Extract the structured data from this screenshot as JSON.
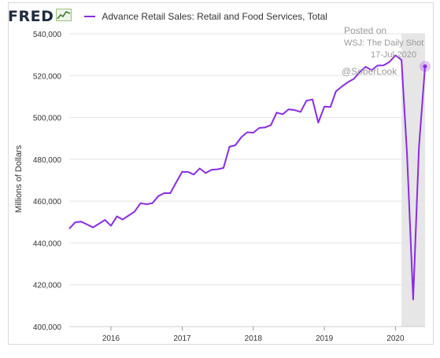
{
  "header": {
    "logo_text": "FRED",
    "logo_icon": "line-chart-icon",
    "legend_label": "Advance Retail Sales: Retail and Food Services, Total",
    "legend_color": "#8a2be2"
  },
  "watermark": {
    "line1": "Posted on",
    "line2": "WSJ: The Daily Shot",
    "line3": "17-Jul-2020",
    "line4": "@SoberLook"
  },
  "chart_data": {
    "type": "line",
    "ylabel": "Millions of Dollars",
    "ylim": [
      400000,
      540000
    ],
    "yticks": [
      400000,
      420000,
      440000,
      460000,
      480000,
      500000,
      520000,
      540000
    ],
    "ytick_labels": [
      "400,000",
      "420,000",
      "440,000",
      "460,000",
      "480,000",
      "500,000",
      "520,000",
      "540,000"
    ],
    "xticks": [
      "2016",
      "2017",
      "2018",
      "2019",
      "2020"
    ],
    "recession_shade": [
      "2020-02",
      "2020-06"
    ],
    "grid": true,
    "series": [
      {
        "name": "Advance Retail Sales: Retail and Food Services, Total",
        "color": "#8a2be2",
        "x": [
          "2015-06",
          "2015-07",
          "2015-08",
          "2015-09",
          "2015-10",
          "2015-11",
          "2015-12",
          "2016-01",
          "2016-02",
          "2016-03",
          "2016-04",
          "2016-05",
          "2016-06",
          "2016-07",
          "2016-08",
          "2016-09",
          "2016-10",
          "2016-11",
          "2016-12",
          "2017-01",
          "2017-02",
          "2017-03",
          "2017-04",
          "2017-05",
          "2017-06",
          "2017-07",
          "2017-08",
          "2017-09",
          "2017-10",
          "2017-11",
          "2017-12",
          "2018-01",
          "2018-02",
          "2018-03",
          "2018-04",
          "2018-05",
          "2018-06",
          "2018-07",
          "2018-08",
          "2018-09",
          "2018-10",
          "2018-11",
          "2018-12",
          "2019-01",
          "2019-02",
          "2019-03",
          "2019-04",
          "2019-05",
          "2019-06",
          "2019-07",
          "2019-08",
          "2019-09",
          "2019-10",
          "2019-11",
          "2019-12",
          "2020-01",
          "2020-02",
          "2020-03",
          "2020-04",
          "2020-05",
          "2020-06"
        ],
        "values": [
          446800,
          449800,
          450200,
          448800,
          447400,
          449200,
          451000,
          448200,
          452700,
          451200,
          453100,
          454900,
          459000,
          458500,
          459000,
          462400,
          463800,
          463800,
          468900,
          474000,
          473900,
          472700,
          475600,
          473400,
          475000,
          475200,
          475800,
          486000,
          486700,
          490600,
          492900,
          492700,
          495000,
          495200,
          496300,
          502300,
          501500,
          503900,
          503500,
          502600,
          508000,
          508600,
          497500,
          505200,
          505000,
          512400,
          514800,
          516800,
          518400,
          521600,
          524200,
          522600,
          524800,
          524900,
          526500,
          529700,
          527500,
          481900,
          413000,
          486000,
          524400
        ]
      }
    ]
  }
}
